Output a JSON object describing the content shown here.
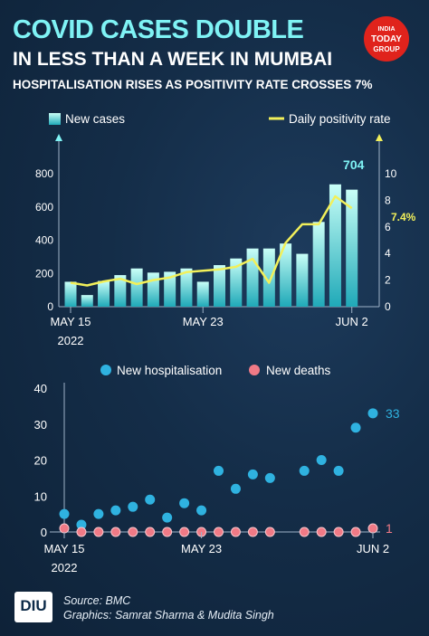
{
  "header": {
    "title_line1": "COVID CASES DOUBLE",
    "title_line2": "IN LESS THAN A WEEK IN MUMBAI",
    "subtitle": "HOSPITALISATION RISES AS POSITIVITY RATE CROSSES 7%"
  },
  "brand": {
    "line1": "INDIA",
    "line2": "TODAY",
    "line3": "GROUP"
  },
  "footer": {
    "logo_text": "DIU",
    "source": "Source: BMC",
    "credit": "Graphics: Samrat Sharma & Mudita Singh"
  },
  "colors": {
    "title": "#7ff3f5",
    "bar_top": "#c9fff7",
    "bar_bottom": "#1fa9b8",
    "positivity_line": "#f2f05a",
    "hospitalisation": "#2fb2e0",
    "deaths": "#f07a86",
    "background": "#142d48"
  },
  "chart_data": [
    {
      "type": "bar",
      "x": [
        "May 15",
        "May 16",
        "May 17",
        "May 18",
        "May 19",
        "May 20",
        "May 21",
        "May 22",
        "May 23",
        "May 24",
        "May 25",
        "May 26",
        "May 27",
        "May 28",
        "May 29",
        "May 30",
        "May 31",
        "Jun 1",
        "Jun 2"
      ],
      "x_ticks": [
        "MAY 15",
        "MAY 23",
        "JUN 2"
      ],
      "x_tick_sub": "2022",
      "series": [
        {
          "name": "New cases",
          "type": "bar",
          "axis": "left",
          "values": [
            150,
            70,
            155,
            190,
            230,
            205,
            210,
            230,
            150,
            250,
            290,
            350,
            350,
            380,
            318,
            510,
            736,
            704,
            704
          ]
        },
        {
          "name": "Daily positivity rate",
          "type": "line",
          "axis": "right",
          "values": [
            1.8,
            1.6,
            1.9,
            2.1,
            1.7,
            2.0,
            2.2,
            2.6,
            2.7,
            2.8,
            3.0,
            3.6,
            1.8,
            4.8,
            6.2,
            6.2,
            8.3,
            7.4,
            7.4
          ]
        }
      ],
      "y_left": {
        "lim": [
          0,
          800
        ],
        "ticks": [
          0,
          200,
          400,
          600,
          800
        ]
      },
      "y_right": {
        "lim": [
          0,
          10
        ],
        "ticks": [
          0,
          2,
          4,
          6,
          8,
          10
        ]
      },
      "annotations": {
        "last_cases": "704",
        "last_positivity": "7.4%"
      },
      "legend": "top"
    },
    {
      "type": "scatter",
      "x": [
        "May 15",
        "May 16",
        "May 17",
        "May 18",
        "May 19",
        "May 20",
        "May 21",
        "May 22",
        "May 23",
        "May 24",
        "May 25",
        "May 26",
        "May 27",
        "May 28",
        "May 29",
        "May 30",
        "May 31",
        "Jun 1",
        "Jun 2"
      ],
      "x_ticks": [
        "MAY 15",
        "MAY 23",
        "JUN 2"
      ],
      "x_tick_sub": "2022",
      "series": [
        {
          "name": "New hospitalisation",
          "values": [
            5,
            2,
            5,
            6,
            7,
            9,
            4,
            8,
            6,
            17,
            12,
            16,
            15,
            null,
            17,
            20,
            17,
            29,
            33
          ]
        },
        {
          "name": "New deaths",
          "values": [
            1,
            0,
            0,
            0,
            0,
            0,
            0,
            0,
            0,
            0,
            0,
            0,
            0,
            null,
            0,
            0,
            0,
            0,
            1
          ]
        }
      ],
      "y": {
        "lim": [
          0,
          40
        ],
        "ticks": [
          0,
          10,
          20,
          30,
          40
        ]
      },
      "annotations": {
        "last_hospitalisation": "33",
        "last_deaths": "1"
      },
      "legend": "top"
    }
  ]
}
